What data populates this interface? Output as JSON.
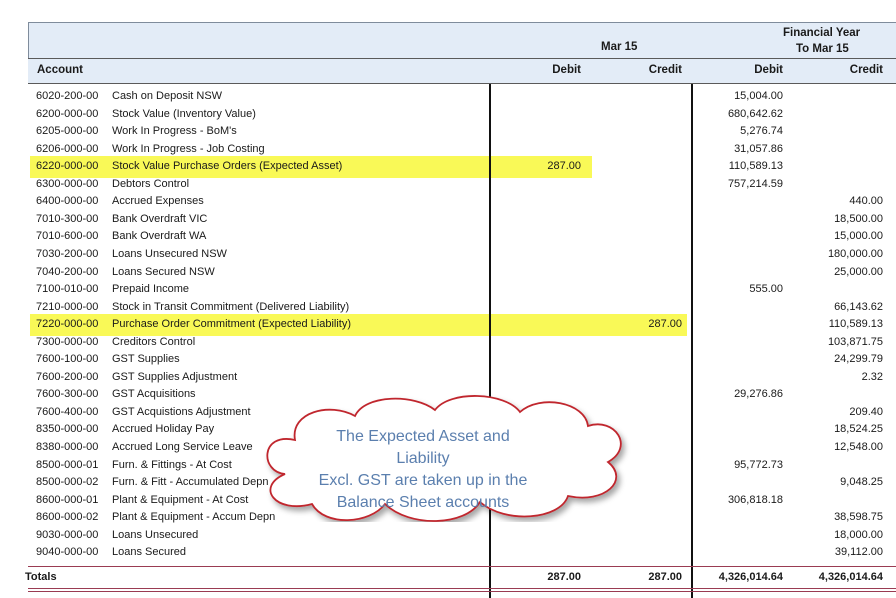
{
  "header": {
    "period_label": "Mar 15",
    "fy_label_line1": "Financial Year",
    "fy_label_line2": "To Mar 15"
  },
  "columns": {
    "account": "Account",
    "debit": "Debit",
    "credit": "Credit",
    "fy_debit": "Debit",
    "fy_credit": "Credit"
  },
  "rows": [
    {
      "code": "6020-200-00",
      "name": "Cash on Deposit NSW",
      "debit": "",
      "credit": "",
      "fy_debit": "15,004.00",
      "fy_credit": "",
      "highlight": ""
    },
    {
      "code": "6200-000-00",
      "name": "Stock Value (Inventory Value)",
      "debit": "",
      "credit": "",
      "fy_debit": "680,642.62",
      "fy_credit": "",
      "highlight": ""
    },
    {
      "code": "6205-000-00",
      "name": "Work In Progress - BoM's",
      "debit": "",
      "credit": "",
      "fy_debit": "5,276.74",
      "fy_credit": "",
      "highlight": ""
    },
    {
      "code": "6206-000-00",
      "name": "Work In Progress - Job Costing",
      "debit": "",
      "credit": "",
      "fy_debit": "31,057.86",
      "fy_credit": "",
      "highlight": ""
    },
    {
      "code": "6220-000-00",
      "name": "Stock Value Purchase Orders (Expected Asset)",
      "debit": "287.00",
      "credit": "",
      "fy_debit": "110,589.13",
      "fy_credit": "",
      "highlight": "a"
    },
    {
      "code": "6300-000-00",
      "name": "Debtors Control",
      "debit": "",
      "credit": "",
      "fy_debit": "757,214.59",
      "fy_credit": "",
      "highlight": ""
    },
    {
      "code": "6400-000-00",
      "name": "Accrued Expenses",
      "debit": "",
      "credit": "",
      "fy_debit": "",
      "fy_credit": "440.00",
      "highlight": ""
    },
    {
      "code": "7010-300-00",
      "name": "Bank Overdraft VIC",
      "debit": "",
      "credit": "",
      "fy_debit": "",
      "fy_credit": "18,500.00",
      "highlight": ""
    },
    {
      "code": "7010-600-00",
      "name": "Bank Overdraft WA",
      "debit": "",
      "credit": "",
      "fy_debit": "",
      "fy_credit": "15,000.00",
      "highlight": ""
    },
    {
      "code": "7030-200-00",
      "name": "Loans Unsecured NSW",
      "debit": "",
      "credit": "",
      "fy_debit": "",
      "fy_credit": "180,000.00",
      "highlight": ""
    },
    {
      "code": "7040-200-00",
      "name": "Loans Secured NSW",
      "debit": "",
      "credit": "",
      "fy_debit": "",
      "fy_credit": "25,000.00",
      "highlight": ""
    },
    {
      "code": "7100-010-00",
      "name": "Prepaid Income",
      "debit": "",
      "credit": "",
      "fy_debit": "555.00",
      "fy_credit": "",
      "highlight": ""
    },
    {
      "code": "7210-000-00",
      "name": "Stock in Transit Commitment (Delivered Liability)",
      "debit": "",
      "credit": "",
      "fy_debit": "",
      "fy_credit": "66,143.62",
      "highlight": ""
    },
    {
      "code": "7220-000-00",
      "name": "Purchase Order Commitment (Expected Liability)",
      "debit": "",
      "credit": "287.00",
      "fy_debit": "",
      "fy_credit": "110,589.13",
      "highlight": "b"
    },
    {
      "code": "7300-000-00",
      "name": "Creditors Control",
      "debit": "",
      "credit": "",
      "fy_debit": "",
      "fy_credit": "103,871.75",
      "highlight": ""
    },
    {
      "code": "7600-100-00",
      "name": "GST Supplies",
      "debit": "",
      "credit": "",
      "fy_debit": "",
      "fy_credit": "24,299.79",
      "highlight": ""
    },
    {
      "code": "7600-200-00",
      "name": "GST Supplies Adjustment",
      "debit": "",
      "credit": "",
      "fy_debit": "",
      "fy_credit": "2.32",
      "highlight": ""
    },
    {
      "code": "7600-300-00",
      "name": "GST Acquisitions",
      "debit": "",
      "credit": "",
      "fy_debit": "29,276.86",
      "fy_credit": "",
      "highlight": ""
    },
    {
      "code": "7600-400-00",
      "name": "GST Acquistions Adjustment",
      "debit": "",
      "credit": "",
      "fy_debit": "",
      "fy_credit": "209.40",
      "highlight": ""
    },
    {
      "code": "8350-000-00",
      "name": "Accrued Holiday Pay",
      "debit": "",
      "credit": "",
      "fy_debit": "",
      "fy_credit": "18,524.25",
      "highlight": ""
    },
    {
      "code": "8380-000-00",
      "name": "Accrued Long Service Leave",
      "debit": "",
      "credit": "",
      "fy_debit": "",
      "fy_credit": "12,548.00",
      "highlight": ""
    },
    {
      "code": "8500-000-01",
      "name": "Furn. & Fittings - At Cost",
      "debit": "",
      "credit": "",
      "fy_debit": "95,772.73",
      "fy_credit": "",
      "highlight": ""
    },
    {
      "code": "8500-000-02",
      "name": "Furn. & Fitt - Accumulated Depn",
      "debit": "",
      "credit": "",
      "fy_debit": "",
      "fy_credit": "9,048.25",
      "highlight": ""
    },
    {
      "code": "8600-000-01",
      "name": "Plant & Equipment - At Cost",
      "debit": "",
      "credit": "",
      "fy_debit": "306,818.18",
      "fy_credit": "",
      "highlight": ""
    },
    {
      "code": "8600-000-02",
      "name": "Plant & Equipment - Accum Depn",
      "debit": "",
      "credit": "",
      "fy_debit": "",
      "fy_credit": "38,598.75",
      "highlight": ""
    },
    {
      "code": "9030-000-00",
      "name": "Loans Unsecured",
      "debit": "",
      "credit": "",
      "fy_debit": "",
      "fy_credit": "18,000.00",
      "highlight": ""
    },
    {
      "code": "9040-000-00",
      "name": "Loans Secured",
      "debit": "",
      "credit": "",
      "fy_debit": "",
      "fy_credit": "39,112.00",
      "highlight": ""
    }
  ],
  "totals": {
    "label": "Totals",
    "debit": "287.00",
    "credit": "287.00",
    "fy_debit": "4,326,014.64",
    "fy_credit": "4,326,014.64"
  },
  "callout": {
    "line1": "The Expected Asset and Liability",
    "line2": "Excl. GST are taken up in the",
    "line3": "Balance Sheet accounts",
    "stroke_color": "#c0282d",
    "text_color": "#5b7fae"
  },
  "colors": {
    "highlight": "#f9f957",
    "header_band": "#e3ecf7",
    "totals_rule": "#9a3b52"
  }
}
